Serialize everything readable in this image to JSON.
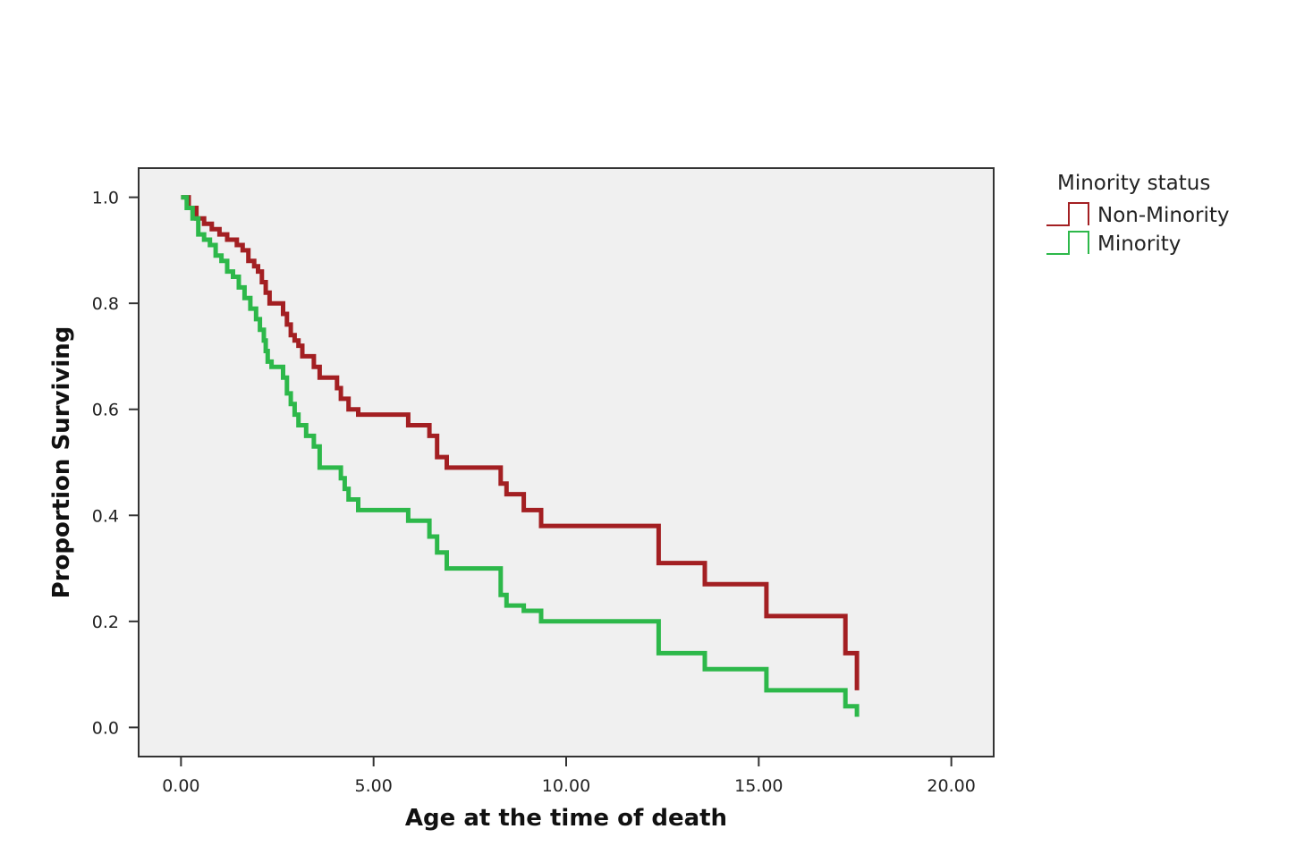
{
  "chart_data": {
    "type": "line",
    "xlabel": "Age at the time of death",
    "ylabel": "Proportion Surviving",
    "xlim": [
      -1.1,
      21.1
    ],
    "ylim": [
      -0.055,
      1.055
    ],
    "xticks": [
      0,
      5,
      10,
      15,
      20
    ],
    "yticks": [
      0.0,
      0.2,
      0.4,
      0.6,
      0.8,
      1.0
    ],
    "xtick_labels": [
      "0.00",
      "5.00",
      "10.00",
      "15.00",
      "20.00"
    ],
    "ytick_labels": [
      "0.0",
      "0.2",
      "0.4",
      "0.6",
      "0.8",
      "1.0"
    ],
    "grid": false,
    "step": true,
    "legend": {
      "title": "Minority status",
      "position": "right"
    },
    "series": [
      {
        "name": "Non-Minority",
        "color": "#a31f22",
        "x": [
          0,
          0.2,
          0.4,
          0.6,
          0.8,
          1.0,
          1.2,
          1.45,
          1.6,
          1.75,
          1.9,
          2.0,
          2.1,
          2.2,
          2.3,
          2.65,
          2.75,
          2.85,
          2.95,
          3.05,
          3.15,
          3.45,
          3.6,
          4.05,
          4.15,
          4.35,
          4.6,
          5.9,
          6.45,
          6.65,
          6.9,
          8.3,
          8.45,
          8.9,
          9.35,
          12.4,
          13.6,
          15.2,
          17.25,
          17.55
        ],
        "y": [
          1.0,
          0.98,
          0.96,
          0.95,
          0.94,
          0.93,
          0.92,
          0.91,
          0.9,
          0.88,
          0.87,
          0.86,
          0.84,
          0.82,
          0.8,
          0.78,
          0.76,
          0.74,
          0.73,
          0.72,
          0.7,
          0.68,
          0.66,
          0.64,
          0.62,
          0.6,
          0.59,
          0.57,
          0.55,
          0.51,
          0.49,
          0.46,
          0.44,
          0.41,
          0.38,
          0.31,
          0.27,
          0.21,
          0.14,
          0.07
        ]
      },
      {
        "name": "Minority",
        "color": "#2db84a",
        "x": [
          0,
          0.15,
          0.3,
          0.45,
          0.6,
          0.75,
          0.9,
          1.05,
          1.2,
          1.35,
          1.5,
          1.65,
          1.8,
          1.95,
          2.05,
          2.15,
          2.2,
          2.25,
          2.35,
          2.65,
          2.75,
          2.85,
          2.95,
          3.05,
          3.25,
          3.45,
          3.6,
          4.15,
          4.25,
          4.35,
          4.6,
          5.9,
          6.45,
          6.65,
          6.9,
          8.3,
          8.45,
          8.9,
          9.35,
          12.4,
          13.6,
          15.2,
          17.25,
          17.55
        ],
        "y": [
          1.0,
          0.98,
          0.96,
          0.93,
          0.92,
          0.91,
          0.89,
          0.88,
          0.86,
          0.85,
          0.83,
          0.81,
          0.79,
          0.77,
          0.75,
          0.73,
          0.71,
          0.69,
          0.68,
          0.66,
          0.63,
          0.61,
          0.59,
          0.57,
          0.55,
          0.53,
          0.49,
          0.47,
          0.45,
          0.43,
          0.41,
          0.39,
          0.36,
          0.33,
          0.3,
          0.25,
          0.23,
          0.22,
          0.2,
          0.14,
          0.11,
          0.07,
          0.04,
          0.02
        ]
      }
    ]
  }
}
